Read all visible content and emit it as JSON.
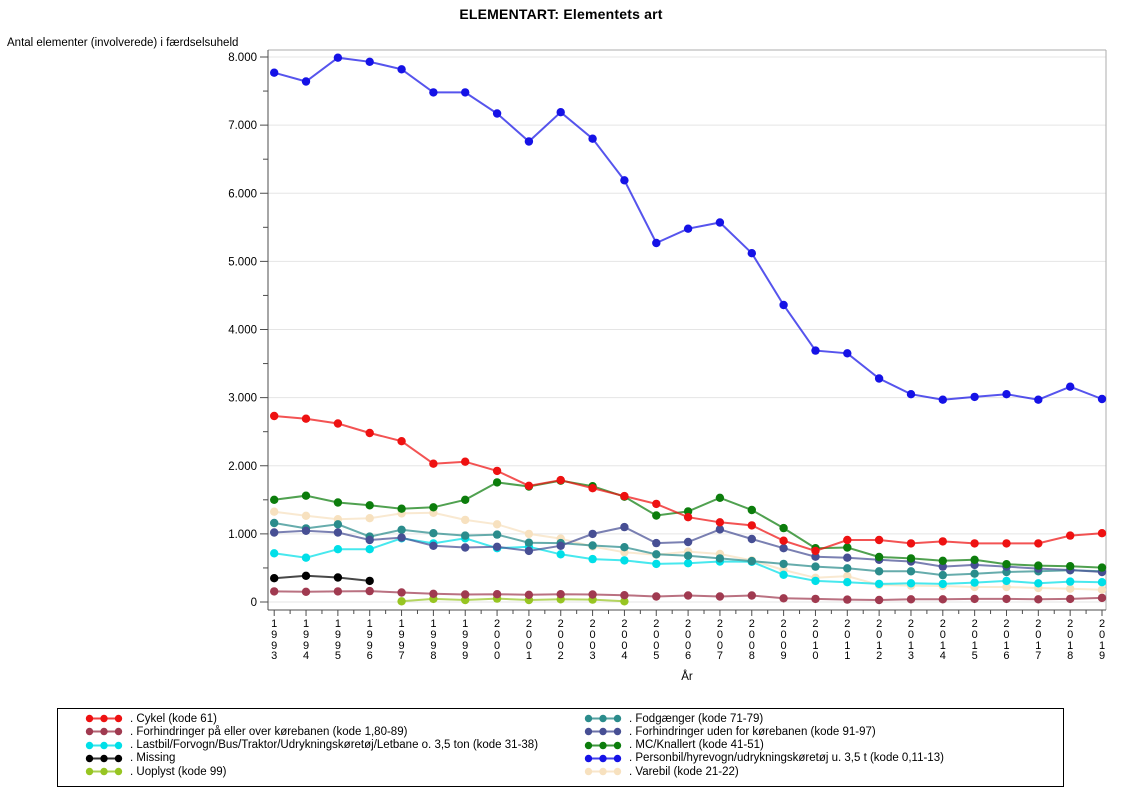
{
  "chart_data": {
    "type": "line",
    "title": "ELEMENTART: Elementets art",
    "ylabel": "Antal elementer (involverede) i færdselsuheld",
    "xlabel": "År",
    "x": [
      1993,
      1994,
      1995,
      1996,
      1997,
      1998,
      1999,
      2000,
      2001,
      2002,
      2003,
      2004,
      2005,
      2006,
      2007,
      2008,
      2009,
      2010,
      2011,
      2012,
      2013,
      2014,
      2015,
      2016,
      2017,
      2018,
      2019
    ],
    "ylim": [
      0,
      8000
    ],
    "grid": "horizontal-major-lines",
    "yticks": [
      {
        "value": 0,
        "label": "0"
      },
      {
        "value": 1000,
        "label": "1.000"
      },
      {
        "value": 2000,
        "label": "2.000"
      },
      {
        "value": 3000,
        "label": "3.000"
      },
      {
        "value": 4000,
        "label": "4.000"
      },
      {
        "value": 5000,
        "label": "5.000"
      },
      {
        "value": 6000,
        "label": "6.000"
      },
      {
        "value": 7000,
        "label": "7.000"
      },
      {
        "value": 8000,
        "label": "8.000"
      }
    ],
    "minor_ticks_y_every": 500,
    "minor_ticks_x": "between-years",
    "legend": {
      "position": "bottom",
      "columns": 2,
      "fill_order": "row-major"
    },
    "series": [
      {
        "id": "cykel",
        "label": ". Cykel (kode 61)",
        "color": "#ee1111",
        "values": [
          2730,
          2690,
          2620,
          2480,
          2360,
          2030,
          2060,
          1925,
          1705,
          1790,
          1670,
          1555,
          1440,
          1245,
          1170,
          1125,
          900,
          750,
          910,
          910,
          860,
          890,
          860,
          860,
          860,
          975,
          1010
        ]
      },
      {
        "id": "fodgaenger",
        "label": ". Fodgænger (kode 71-79)",
        "color": "#2b8c8c",
        "values": [
          1160,
          1080,
          1140,
          960,
          1060,
          1010,
          975,
          990,
          870,
          865,
          830,
          805,
          700,
          680,
          640,
          600,
          560,
          520,
          495,
          450,
          450,
          395,
          415,
          440,
          450,
          465,
          450
        ]
      },
      {
        "id": "forhindringer_paa",
        "label": ". Forhindringer på eller over kørebanen (kode 1,80-89)",
        "color": "#a03a50",
        "values": [
          155,
          150,
          155,
          160,
          140,
          120,
          110,
          115,
          105,
          115,
          110,
          100,
          80,
          95,
          80,
          95,
          55,
          45,
          35,
          30,
          40,
          40,
          45,
          45,
          40,
          45,
          60
        ]
      },
      {
        "id": "forhindringer_uden",
        "label": ". Forhindringer uden for kørebanen (kode 91-97)",
        "color": "#474f94",
        "values": [
          1020,
          1045,
          1020,
          910,
          945,
          825,
          800,
          810,
          750,
          825,
          1000,
          1100,
          865,
          880,
          1065,
          925,
          790,
          665,
          650,
          620,
          595,
          520,
          545,
          520,
          490,
          470,
          440
        ]
      },
      {
        "id": "lastbil",
        "label": ". Lastbil/Forvogn/Bus/Traktor/Udrykningskøretøj/Letbane o. 3,5 ton (kode 31-38)",
        "color": "#00dfe8",
        "values": [
          715,
          650,
          775,
          775,
          935,
          860,
          935,
          790,
          810,
          700,
          630,
          610,
          560,
          570,
          595,
          590,
          400,
          310,
          290,
          265,
          275,
          265,
          285,
          310,
          275,
          300,
          290
        ]
      },
      {
        "id": "mc_knallert",
        "label": ". MC/Knallert (kode 41-51)",
        "color": "#0c7d0c",
        "values": [
          1500,
          1560,
          1460,
          1420,
          1370,
          1390,
          1500,
          1755,
          1695,
          1780,
          1700,
          1545,
          1270,
          1330,
          1530,
          1350,
          1085,
          790,
          800,
          660,
          640,
          605,
          620,
          555,
          535,
          525,
          505
        ]
      },
      {
        "id": "missing",
        "label": ". Missing",
        "color": "#000000",
        "values": [
          350,
          385,
          360,
          310,
          null,
          null,
          null,
          null,
          null,
          null,
          null,
          null,
          null,
          null,
          null,
          null,
          null,
          null,
          null,
          null,
          null,
          null,
          null,
          null,
          null,
          null,
          null
        ]
      },
      {
        "id": "personbil",
        "label": ". Personbil/hyrevogn/udrykningskøretøj u. 3,5 t (kode 0,11-13)",
        "color": "#1512e6",
        "values": [
          7770,
          7640,
          7990,
          7930,
          7820,
          7480,
          7480,
          7170,
          6760,
          7190,
          6800,
          6190,
          5270,
          5480,
          5570,
          5120,
          4360,
          3690,
          3650,
          3280,
          3050,
          2970,
          3010,
          3050,
          2970,
          3160,
          2980
        ]
      },
      {
        "id": "uoplyst",
        "label": ". Uoplyst (kode 99)",
        "color": "#97c522",
        "values": [
          null,
          null,
          null,
          null,
          10,
          45,
          30,
          50,
          30,
          40,
          35,
          10,
          null,
          null,
          null,
          null,
          null,
          null,
          null,
          null,
          null,
          null,
          null,
          null,
          null,
          null,
          null
        ]
      },
      {
        "id": "varebil",
        "label": ". Varebil (kode 21-22)",
        "color": "#f7e1bf",
        "values": [
          1325,
          1265,
          1215,
          1230,
          1300,
          1310,
          1205,
          1140,
          1000,
          930,
          815,
          730,
          695,
          740,
          705,
          610,
          470,
          355,
          380,
          250,
          240,
          235,
          220,
          220,
          205,
          195,
          180
        ]
      }
    ],
    "draw_order": [
      "varebil",
      "uoplyst",
      "missing",
      "forhindringer_paa",
      "lastbil",
      "fodgaenger",
      "forhindringer_uden",
      "mc_knallert",
      "cykel",
      "personbil"
    ]
  }
}
